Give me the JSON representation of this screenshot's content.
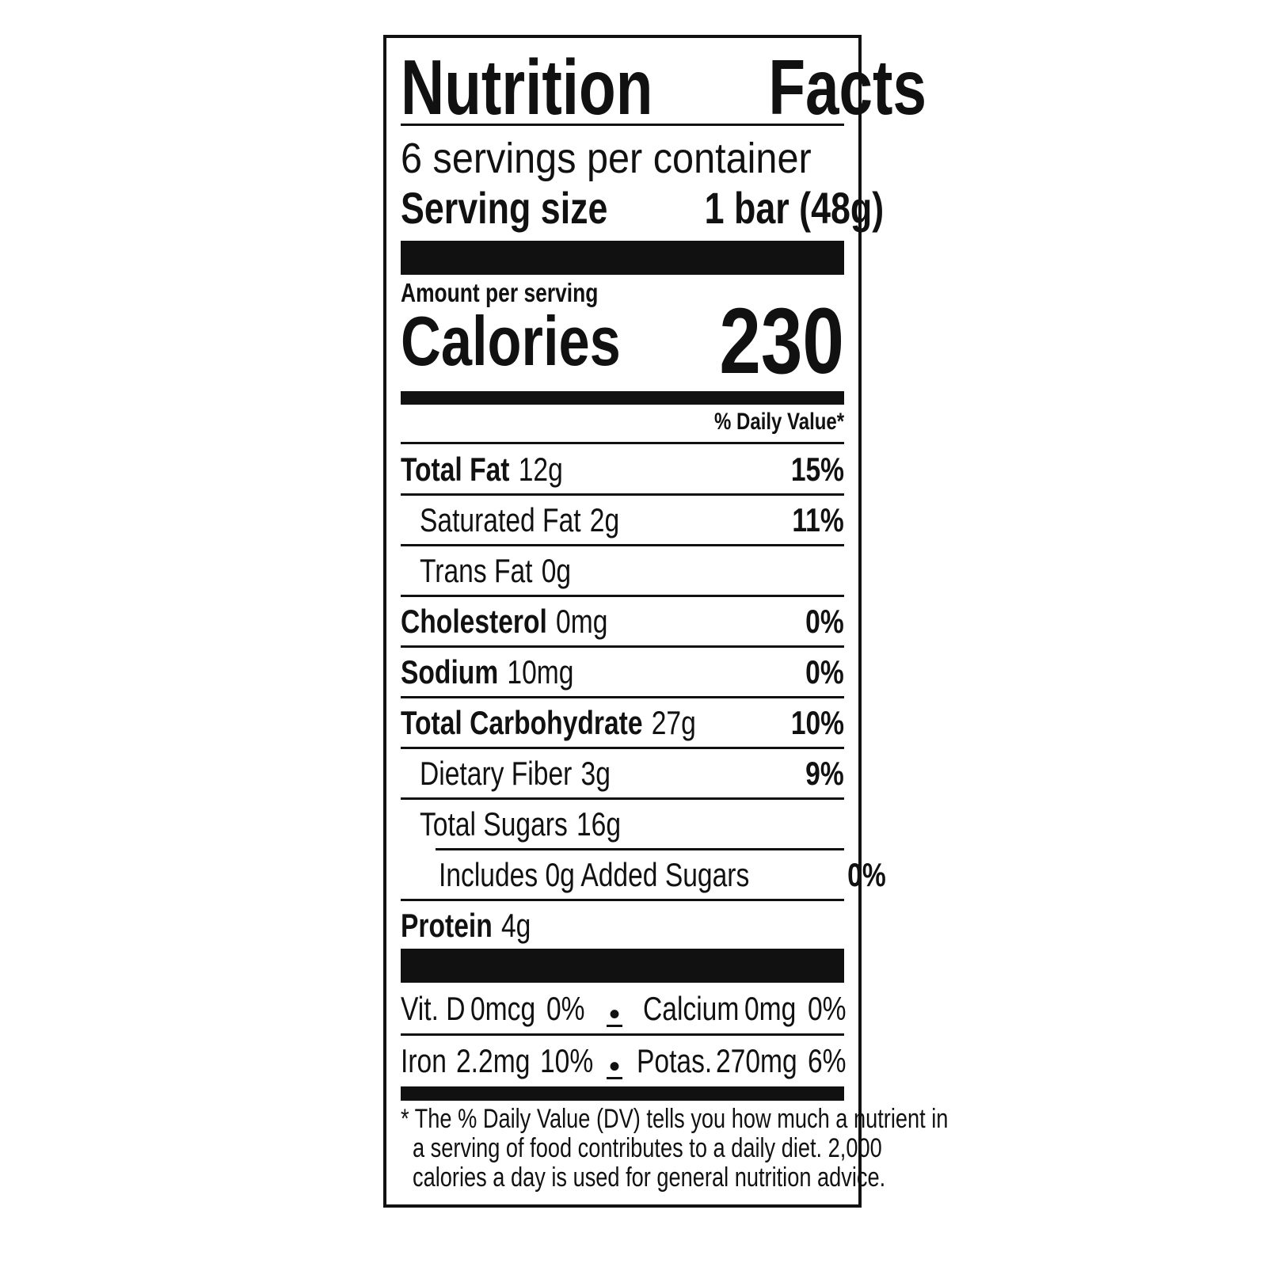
{
  "title": {
    "word1": "Nutrition",
    "word2": "Facts"
  },
  "servings_per_container": "6 servings per container",
  "serving_size": {
    "label": "Serving size",
    "value": "1 bar (48g)"
  },
  "amount_per_serving": "Amount per serving",
  "calories": {
    "label": "Calories",
    "value": "230"
  },
  "daily_value_header": "% Daily Value*",
  "nutrients": [
    {
      "name": "Total Fat",
      "amount": "12g",
      "dv": "15%"
    },
    {
      "name": "Saturated Fat",
      "amount": "2g",
      "dv": "11%"
    },
    {
      "name": "Trans Fat",
      "amount": "0g",
      "dv": ""
    },
    {
      "name": "Cholesterol",
      "amount": "0mg",
      "dv": "0%"
    },
    {
      "name": "Sodium",
      "amount": "10mg",
      "dv": "0%"
    },
    {
      "name": "Total Carbohydrate",
      "amount": "27g",
      "dv": "10%"
    },
    {
      "name": "Dietary Fiber",
      "amount": "3g",
      "dv": "9%"
    },
    {
      "name": "Total Sugars",
      "amount": "16g",
      "dv": ""
    },
    {
      "name": "Includes 0g Added Sugars",
      "amount": "",
      "dv": "0%"
    },
    {
      "name": "Protein",
      "amount": "4g",
      "dv": ""
    }
  ],
  "vitamins": [
    {
      "name": "Vit. D",
      "amount": "0mcg",
      "dv": "0%"
    },
    {
      "name": "Calcium",
      "amount": "0mg",
      "dv": "0%"
    },
    {
      "name": "Iron",
      "amount": "2.2mg",
      "dv": "10%"
    },
    {
      "name": "Potas.",
      "amount": "270mg",
      "dv": "6%"
    }
  ],
  "separator": "•",
  "footnote": {
    "line1": "* The % Daily Value (DV) tells you how much a nutrient in",
    "line2": "a serving of food contributes to a daily diet. 2,000",
    "line3": "calories a day is used for general nutrition advice."
  }
}
